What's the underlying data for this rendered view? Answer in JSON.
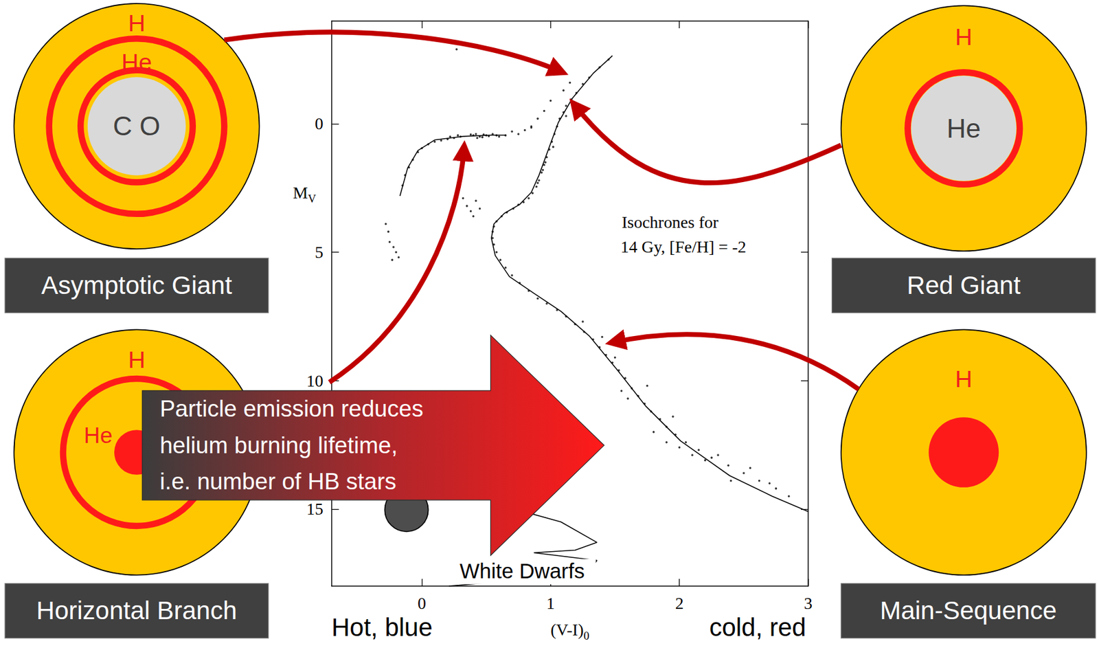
{
  "stages": [
    {
      "label": "Asymptotic Giant",
      "shell_labels": [
        "H",
        "He"
      ],
      "core_label": "C O"
    },
    {
      "label": "Red Giant",
      "shell_labels": [
        "H"
      ],
      "core_label": "He"
    },
    {
      "label": "Horizontal Branch",
      "shell_labels": [
        "H",
        "He"
      ]
    },
    {
      "label": "Main-Sequence",
      "shell_labels": [
        "H"
      ]
    }
  ],
  "callout": [
    "Particle emission reduces",
    "helium burning lifetime,",
    "i.e. number of HB stars"
  ],
  "white_dwarf_label": "White Dwarfs",
  "color_labels": {
    "left": "Hot, blue",
    "right": "cold, red"
  },
  "chart_data": {
    "type": "scatter",
    "annotations": [
      "Isochrones for",
      "14 Gy, [Fe/H] = -2"
    ],
    "x_label": {
      "main": "(V-I)",
      "sub": "0"
    },
    "y_label": {
      "main": "M",
      "sub": "V"
    },
    "xlim": [
      -0.7,
      3
    ],
    "xticks": [
      0,
      1,
      2,
      3
    ],
    "ylim": [
      18,
      -4
    ],
    "yticks": [
      0,
      5,
      10,
      15
    ],
    "grid": false,
    "series": [
      {
        "type": "scatter",
        "color": "#000000",
        "marker": "dot",
        "x": [
          1.45,
          1.38,
          1.3,
          1.25,
          1.2,
          1.16,
          1.12,
          1.1,
          1.07,
          1.05,
          1.03,
          1.01,
          0.99,
          0.97,
          0.95,
          0.93,
          0.91,
          0.89,
          0.86,
          0.83,
          0.79,
          0.75,
          0.71,
          0.66,
          0.62,
          0.58,
          0.56,
          0.55,
          0.55,
          0.56,
          0.58,
          0.61,
          0.65,
          0.7,
          0.76,
          0.83,
          0.9,
          0.97,
          1.05,
          1.12,
          1.19,
          1.26,
          1.33,
          1.38,
          1.43,
          1.48,
          1.53,
          1.58,
          1.63,
          1.68,
          1.73,
          1.78,
          1.85,
          1.9,
          1.97,
          2.05,
          2.15,
          2.25,
          2.38,
          2.5,
          2.62,
          2.75,
          2.85
        ],
        "values": [
          -2.5,
          -2.2,
          -1.8,
          -1.55,
          -1.2,
          -0.95,
          -0.7,
          -0.45,
          -0.2,
          0.1,
          0.4,
          0.7,
          1.0,
          1.3,
          1.6,
          1.9,
          2.2,
          2.45,
          2.7,
          2.9,
          3.05,
          3.15,
          3.3,
          3.45,
          3.6,
          3.8,
          4.0,
          4.2,
          4.45,
          4.7,
          5.0,
          5.3,
          5.6,
          5.9,
          6.2,
          6.5,
          6.8,
          7.0,
          7.25,
          7.5,
          7.8,
          8.1,
          8.4,
          8.7,
          9.0,
          9.3,
          9.6,
          9.9,
          10.3,
          10.6,
          10.9,
          11.2,
          11.5,
          11.8,
          12.1,
          12.4,
          12.7,
          13.0,
          13.3,
          13.6,
          13.9,
          14.2,
          14.5
        ]
      },
      {
        "type": "scatter",
        "color": "#000000",
        "marker": "dot",
        "x": [
          1.15,
          1.1,
          1.0,
          0.95,
          0.9,
          0.85
        ],
        "values": [
          -1.6,
          -1.3,
          -0.9,
          -0.5,
          -0.2,
          0.1
        ]
      },
      {
        "type": "scatter",
        "color": "#000000",
        "marker": "dot",
        "x": [
          1.02,
          0.96,
          0.9,
          1.12,
          0.94
        ],
        "values": [
          0.9,
          1.5,
          2.3,
          -0.3,
          1.8
        ]
      },
      {
        "type": "scatter",
        "color": "#000000",
        "marker": "dot",
        "x": [
          1.4,
          1.5,
          1.6,
          1.75,
          1.8,
          1.95,
          2.1,
          2.2,
          2.3,
          2.4,
          2.55,
          2.7,
          1.25,
          1.55,
          1.9,
          2.0
        ],
        "values": [
          8.3,
          9.1,
          10.7,
          10.2,
          12.0,
          11.4,
          12.9,
          13.1,
          12.9,
          13.9,
          13.4,
          14.0,
          7.7,
          10.4,
          12.4,
          12.6
        ]
      },
      {
        "type": "scatter",
        "color": "#000000",
        "marker": "dot",
        "x": [
          0.4,
          0.42,
          0.45,
          0.48,
          0.5,
          0.52,
          0.55,
          0.47,
          0.43,
          0.58,
          0.6,
          0.38,
          0.3,
          0.25,
          0.2,
          0.15,
          0.1,
          0.05,
          0.0,
          -0.03,
          -0.07,
          -0.1,
          -0.13,
          -0.15,
          0.28,
          0.22,
          0.7,
          0.75,
          0.8,
          0.85,
          0.65
        ],
        "values": [
          0.45,
          0.4,
          0.5,
          0.42,
          0.45,
          0.48,
          0.4,
          0.52,
          0.55,
          0.45,
          0.5,
          0.42,
          0.5,
          0.55,
          0.6,
          0.65,
          0.7,
          0.8,
          0.95,
          1.1,
          1.4,
          1.7,
          2.0,
          2.4,
          0.45,
          0.5,
          0.3,
          0.4,
          0.25,
          0.15,
          0.45
        ]
      },
      {
        "type": "scatter",
        "color": "#000000",
        "marker": "dot",
        "x": [
          -0.25,
          -0.22,
          -0.2,
          -0.23,
          -0.18,
          -0.28,
          -0.26,
          0.35,
          0.38,
          0.42,
          0.45,
          0.4,
          0.32,
          0.27
        ],
        "values": [
          4.6,
          4.8,
          5.0,
          5.3,
          5.2,
          3.9,
          4.2,
          3.2,
          3.4,
          3.0,
          3.3,
          3.6,
          2.9,
          -2.9
        ]
      },
      {
        "type": "line",
        "color": "#000000",
        "line_style": "solid",
        "x": [
          1.48,
          1.33,
          1.17,
          1.06,
          0.98,
          0.91,
          0.85,
          0.76,
          0.64,
          0.56,
          0.54,
          0.57,
          0.68,
          0.87,
          1.08,
          1.3,
          1.52,
          1.74,
          2.01,
          2.39,
          2.72,
          3.0
        ],
        "values": [
          -2.65,
          -1.96,
          -1.0,
          -0.05,
          1.04,
          2.0,
          2.67,
          3.14,
          3.49,
          3.9,
          4.45,
          5.13,
          5.95,
          6.6,
          7.3,
          8.26,
          9.6,
          11.0,
          12.35,
          13.7,
          14.5,
          15.1
        ]
      },
      {
        "type": "line",
        "color": "#000000",
        "line_style": "solid",
        "x": [
          -0.17,
          -0.11,
          -0.03,
          0.1,
          0.32,
          0.54,
          0.65
        ],
        "values": [
          2.81,
          1.72,
          1.04,
          0.63,
          0.49,
          0.44,
          0.44
        ]
      },
      {
        "type": "line",
        "color": "#000000",
        "line_style": "solid",
        "x": [
          0.54,
          1.08,
          1.36,
          1.19,
          0.87,
          1.36,
          1.3,
          0.81,
          0.21
        ],
        "values": [
          14.75,
          15.5,
          16.3,
          16.6,
          16.7,
          17.0,
          17.4,
          17.75,
          18.0
        ]
      }
    ]
  }
}
